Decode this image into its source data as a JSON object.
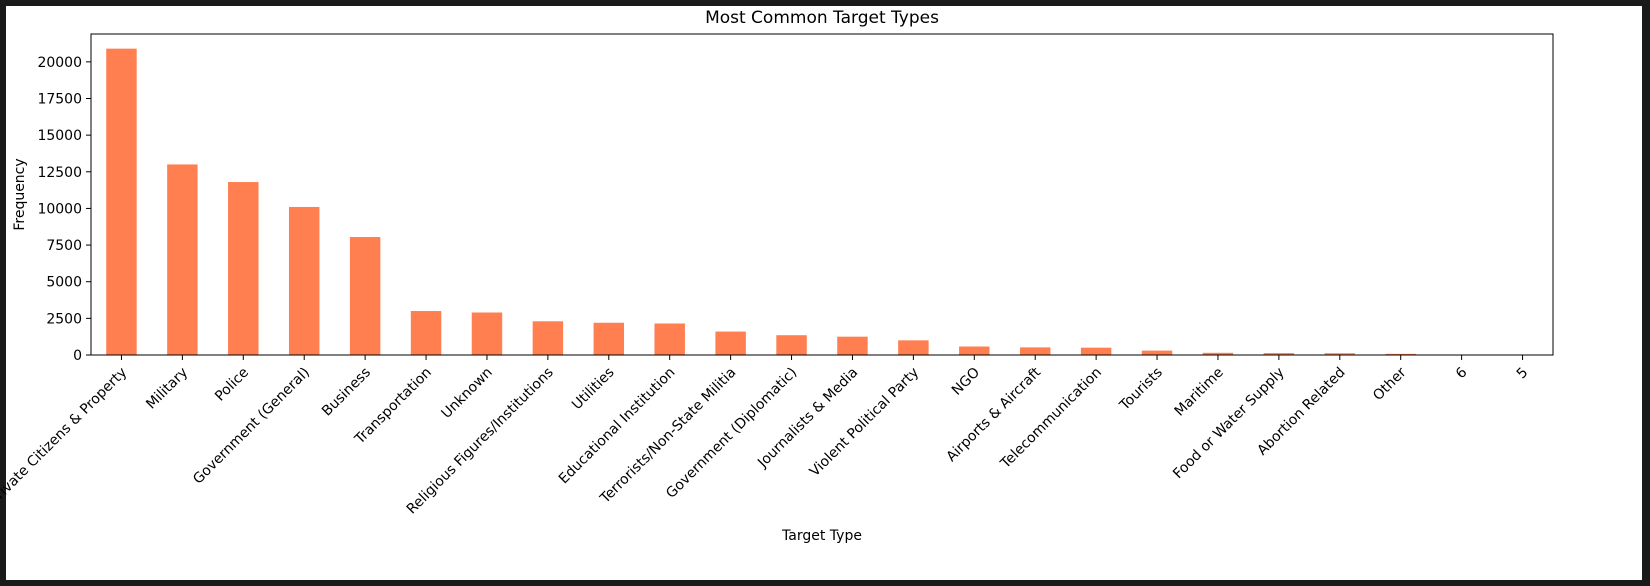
{
  "chart_data": {
    "type": "bar",
    "title": "Most Common Target Types",
    "xlabel": "Target Type",
    "ylabel": "Frequency",
    "categories": [
      "Private Citizens & Property",
      "Military",
      "Police",
      "Government (General)",
      "Business",
      "Transportation",
      "Unknown",
      "Religious Figures/Institutions",
      "Utilities",
      "Educational Institution",
      "Terrorists/Non-State Militia",
      "Government (Diplomatic)",
      "Journalists & Media",
      "Violent Political Party",
      "NGO",
      "Airports & Aircraft",
      "Telecommunication",
      "Tourists",
      "Maritime",
      "Food or Water Supply",
      "Abortion Related",
      "Other",
      "6",
      "5"
    ],
    "values": [
      20900,
      13000,
      11800,
      10100,
      8050,
      3000,
      2900,
      2300,
      2200,
      2150,
      1600,
      1350,
      1250,
      1000,
      580,
      520,
      500,
      300,
      150,
      130,
      120,
      80,
      2,
      1
    ],
    "ylim": [
      0,
      21900
    ],
    "yticks": [
      0,
      2500,
      5000,
      7500,
      10000,
      12500,
      15000,
      17500,
      20000
    ],
    "bar_color": "#ff7f50",
    "grid": false,
    "legend": "none"
  }
}
